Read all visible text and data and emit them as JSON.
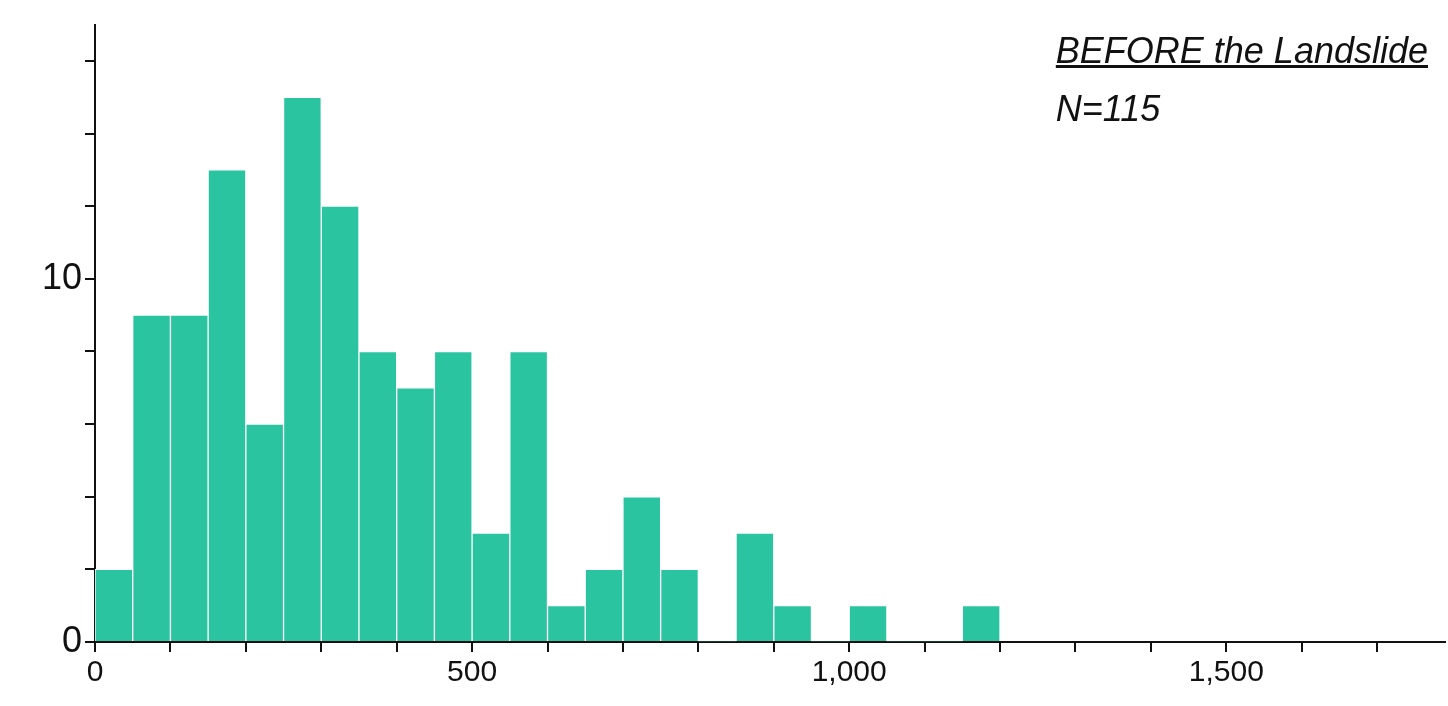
{
  "chart_data": {
    "type": "histogram",
    "title": "BEFORE the Landslide",
    "annotations": [
      "N=115"
    ],
    "bins": [
      0,
      50,
      100,
      150,
      200,
      250,
      300,
      350,
      400,
      450,
      500,
      550,
      600,
      650,
      700,
      750,
      800,
      850,
      900,
      950,
      1000,
      1050,
      1100,
      1150,
      1200
    ],
    "values": [
      2,
      9,
      9,
      13,
      6,
      15,
      12,
      8,
      7,
      8,
      3,
      8,
      1,
      2,
      4,
      2,
      0,
      3,
      1,
      0,
      1,
      0,
      0,
      1
    ],
    "color": "#2bc4a0",
    "xlim": [
      0,
      1790
    ],
    "xticks": [
      0,
      {
        "value": 100,
        "label": null
      },
      {
        "value": 200,
        "label": null
      },
      {
        "value": 300,
        "label": null
      },
      {
        "value": 400,
        "label": null
      },
      500,
      {
        "value": 600,
        "label": null
      },
      {
        "value": 700,
        "label": null
      },
      {
        "value": 800,
        "label": null
      },
      {
        "value": 900,
        "label": null
      },
      {
        "value": 1000,
        "label": "1,000"
      },
      {
        "value": 1100,
        "label": null
      },
      {
        "value": 1200,
        "label": null
      },
      {
        "value": 1300,
        "label": null
      },
      {
        "value": 1400,
        "label": null
      },
      {
        "value": 1500,
        "label": "1,500"
      },
      {
        "value": 1600,
        "label": null
      },
      {
        "value": 1700,
        "label": null
      }
    ],
    "ylim": [
      0,
      17
    ],
    "yticks": [
      0,
      {
        "value": 2,
        "label": null
      },
      {
        "value": 4,
        "label": null
      },
      {
        "value": 6,
        "label": null
      },
      {
        "value": 8,
        "label": null
      },
      10,
      {
        "value": 12,
        "label": null
      },
      {
        "value": 14,
        "label": null
      },
      {
        "value": 16,
        "label": null
      }
    ],
    "grid": false,
    "legend": false
  }
}
